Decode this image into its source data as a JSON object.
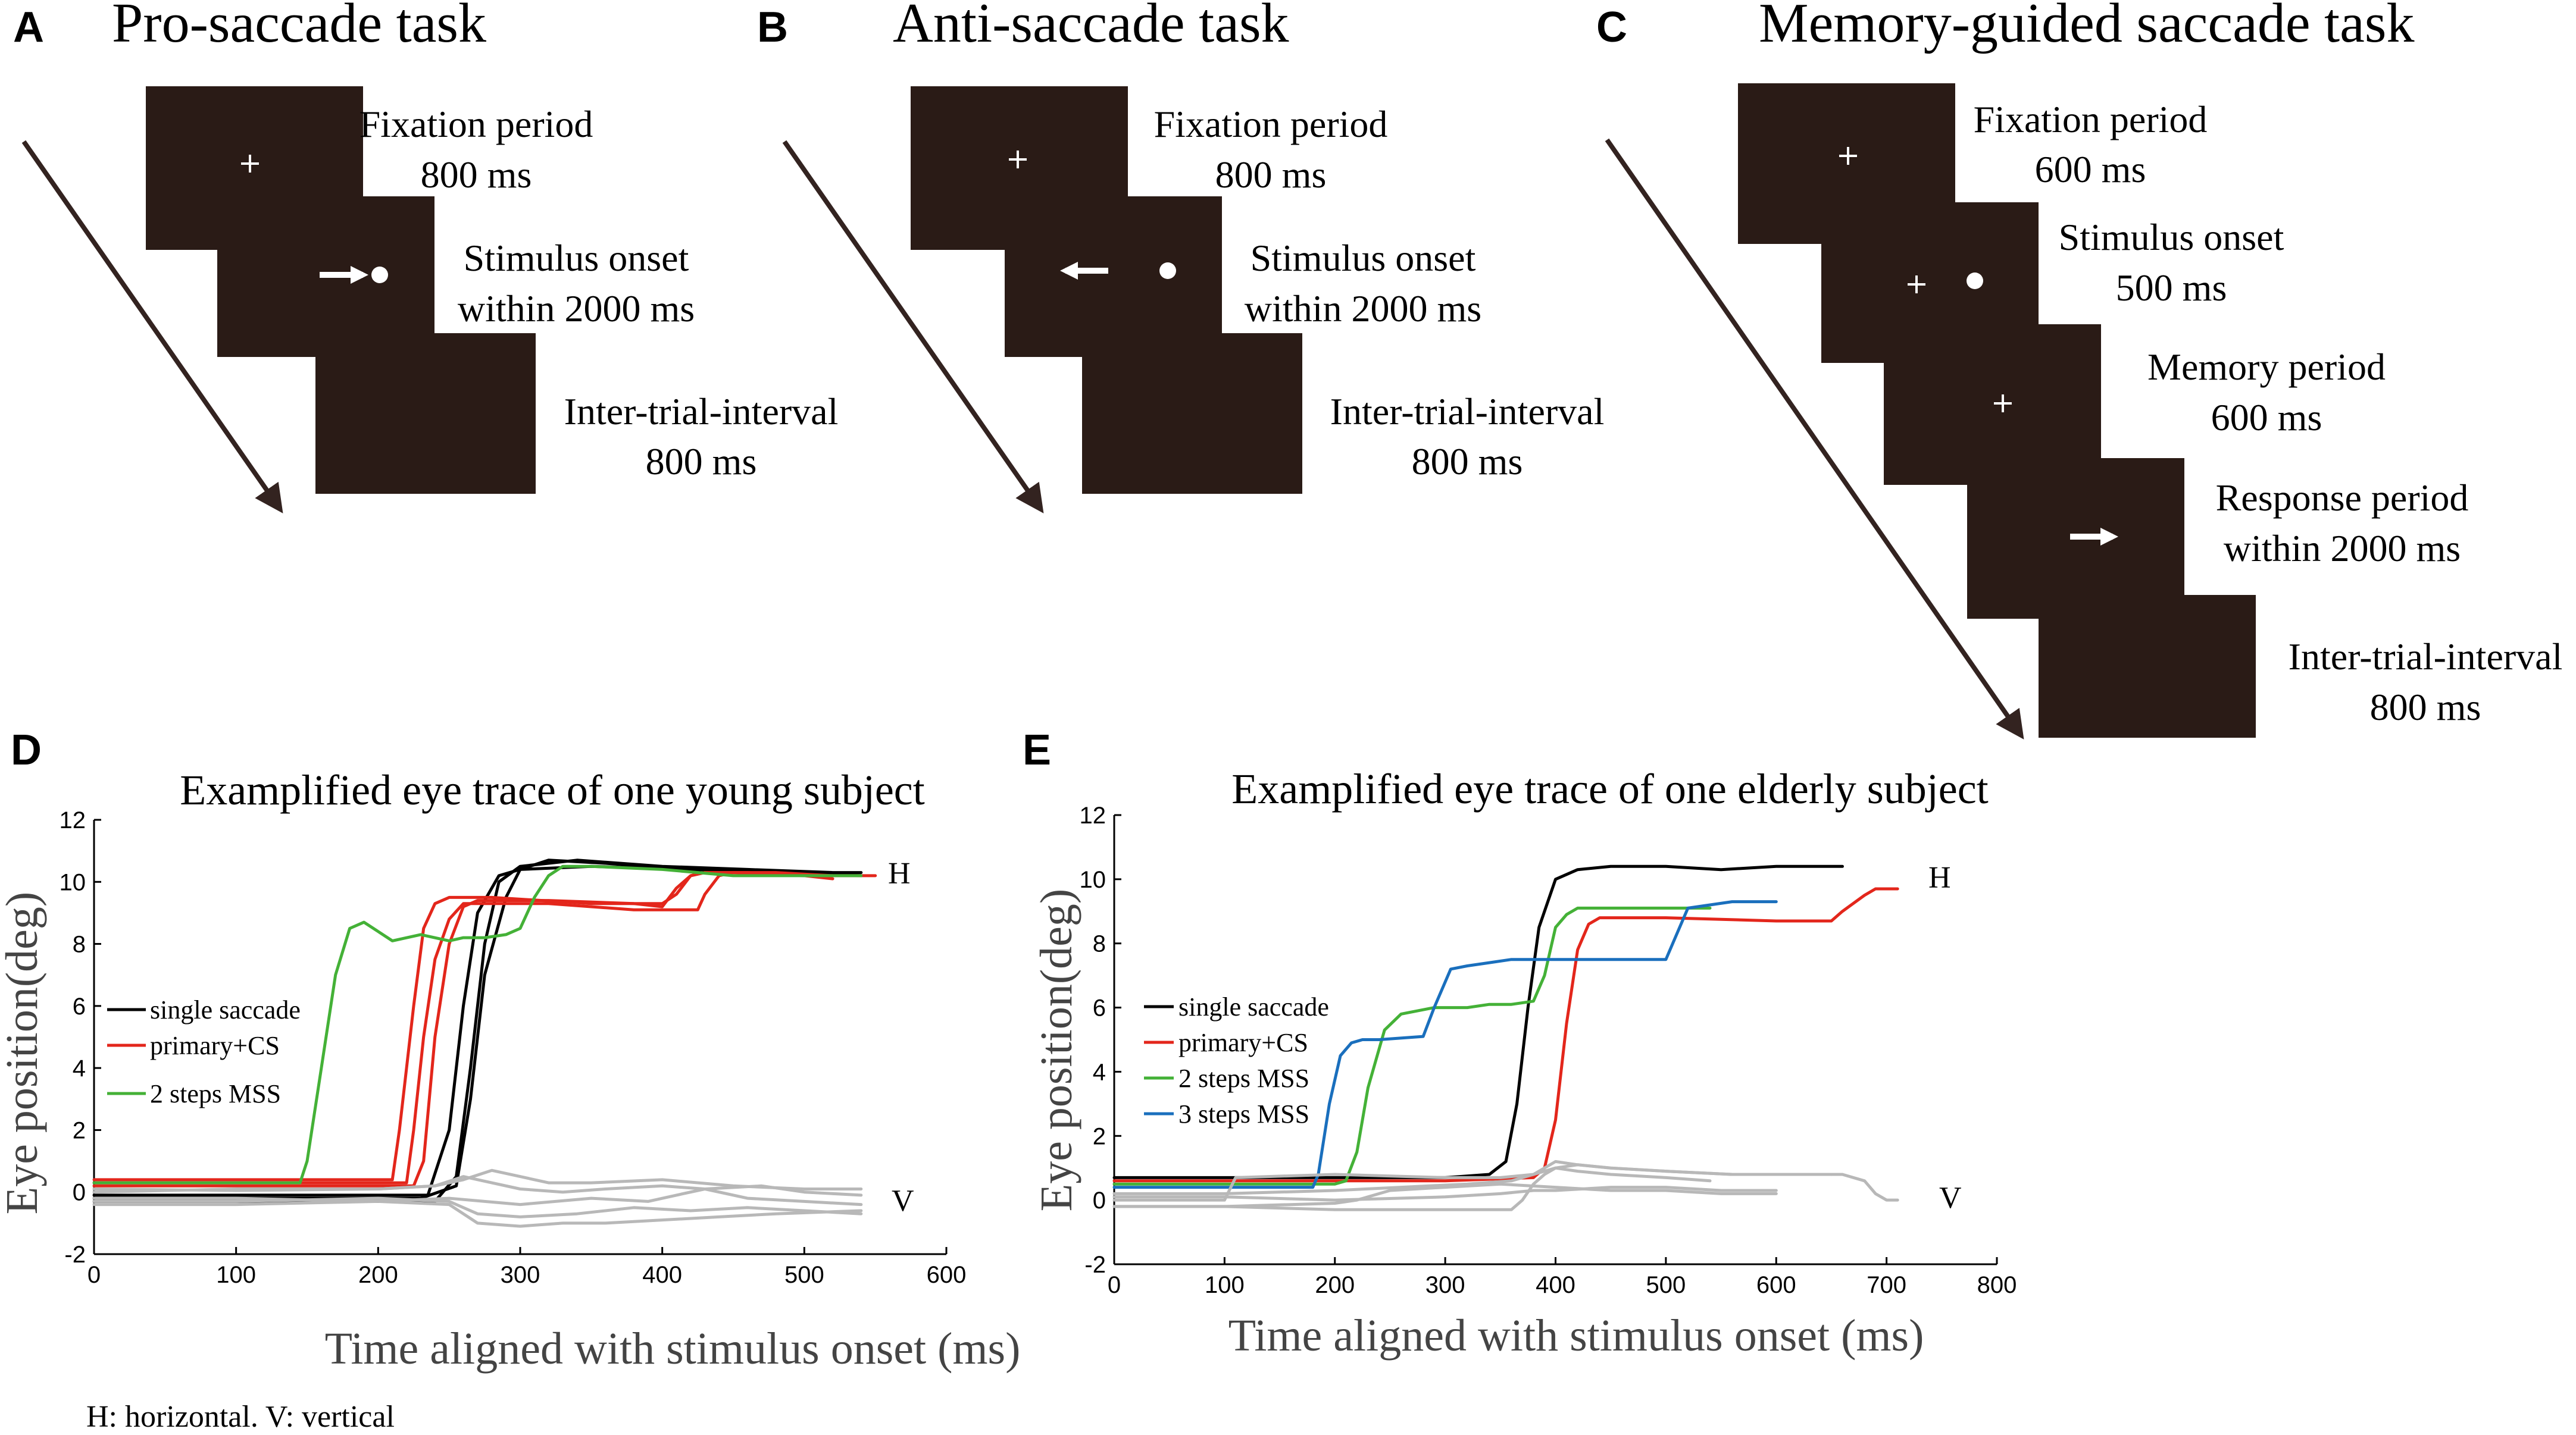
{
  "colors": {
    "screen": "#2a1b16",
    "arrow": "#332320",
    "single": "#000000",
    "primary_cs": "#e3261b",
    "two_steps": "#44b137",
    "three_steps": "#1a6fbd",
    "vertical": "#b8b8b8"
  },
  "panels": {
    "a": {
      "label": "A",
      "title": "Pro-saccade task",
      "steps": [
        {
          "line1": "Fixation period",
          "line2": "800 ms"
        },
        {
          "line1": "Stimulus onset",
          "line2": "within 2000 ms"
        },
        {
          "line1": "Inter-trial-interval",
          "line2": "800 ms"
        }
      ]
    },
    "b": {
      "label": "B",
      "title": "Anti-saccade task",
      "steps": [
        {
          "line1": "Fixation period",
          "line2": "800 ms"
        },
        {
          "line1": "Stimulus onset",
          "line2": "within 2000 ms"
        },
        {
          "line1": "Inter-trial-interval",
          "line2": "800 ms"
        }
      ]
    },
    "c": {
      "label": "C",
      "title": "Memory-guided saccade task",
      "steps": [
        {
          "line1": "Fixation period",
          "line2": "600 ms"
        },
        {
          "line1": "Stimulus onset",
          "line2": "500 ms"
        },
        {
          "line1": "Memory period",
          "line2": "600 ms"
        },
        {
          "line1": "Response period",
          "line2": "within 2000 ms"
        },
        {
          "line1": "Inter-trial-interval",
          "line2": "800 ms"
        }
      ]
    }
  },
  "chart_data": [
    {
      "id": "d",
      "label": "D",
      "type": "line",
      "title": "Examplified eye trace of one young subject",
      "xlabel": "Time aligned with stimulus onset (ms)",
      "ylabel": "Eye position(deg)",
      "xlim": [
        0,
        600
      ],
      "ylim": [
        -2,
        12
      ],
      "xticks": [
        "0",
        "100",
        "200",
        "300",
        "400",
        "500",
        "600"
      ],
      "yticks": [
        "-2",
        "0",
        "2",
        "4",
        "6",
        "8",
        "10",
        "12"
      ],
      "annotations": {
        "h": "H",
        "v": "V"
      },
      "legend": [
        "single saccade",
        "primary+CS",
        "2 steps MSS"
      ],
      "series": [
        {
          "name": "single saccade",
          "color": "#000000",
          "x": [
            0,
            230,
            255,
            265,
            275,
            290,
            300,
            320,
            360,
            420,
            480,
            540
          ],
          "y": [
            -0.2,
            -0.2,
            0.2,
            3,
            7,
            9.5,
            10.4,
            10.7,
            10.6,
            10.4,
            10.3,
            10.2
          ]
        },
        {
          "name": "single saccade",
          "color": "#000000",
          "x": [
            0,
            240,
            255,
            265,
            275,
            285,
            300,
            340,
            400,
            460,
            520,
            540
          ],
          "y": [
            -0.3,
            -0.3,
            0.5,
            4,
            8,
            10,
            10.5,
            10.7,
            10.5,
            10.4,
            10.3,
            10.3
          ]
        },
        {
          "name": "single saccade",
          "color": "#000000",
          "x": [
            0,
            235,
            250,
            260,
            270,
            285,
            300,
            350,
            420,
            480,
            540
          ],
          "y": [
            -0.1,
            -0.1,
            2,
            6,
            9,
            10.2,
            10.4,
            10.5,
            10.4,
            10.3,
            10.2
          ]
        },
        {
          "name": "primary+CS",
          "color": "#e3261b",
          "x": [
            0,
            210,
            215,
            225,
            232,
            240,
            250,
            280,
            350,
            400,
            410,
            420,
            430,
            460,
            500,
            520
          ],
          "y": [
            0.4,
            0.4,
            2,
            6,
            8.5,
            9.3,
            9.5,
            9.5,
            9.3,
            9.3,
            9.6,
            10.2,
            10.3,
            10.3,
            10.2,
            10.1
          ]
        },
        {
          "name": "primary+CS",
          "color": "#e3261b",
          "x": [
            0,
            220,
            225,
            232,
            240,
            250,
            260,
            320,
            380,
            425,
            430,
            440,
            450,
            500,
            550
          ],
          "y": [
            0.3,
            0.3,
            2,
            5,
            7.5,
            8.8,
            9.3,
            9.3,
            9.1,
            9.1,
            9.6,
            10.2,
            10.3,
            10.2,
            10.2
          ]
        },
        {
          "name": "primary+CS",
          "color": "#e3261b",
          "x": [
            0,
            225,
            232,
            240,
            250,
            260,
            270,
            320,
            380,
            400,
            410,
            420,
            430,
            480,
            520
          ],
          "y": [
            0.2,
            0.2,
            1,
            5,
            8,
            9.2,
            9.4,
            9.4,
            9.3,
            9.2,
            9.8,
            10.2,
            10.3,
            10.3,
            10.2
          ]
        },
        {
          "name": "2 steps MSS",
          "color": "#44b137",
          "x": [
            0,
            145,
            150,
            160,
            170,
            180,
            190,
            200,
            210,
            230,
            250,
            260,
            275,
            290,
            300,
            310,
            320,
            330,
            350,
            400,
            450,
            500,
            540
          ],
          "y": [
            0.3,
            0.3,
            1,
            4,
            7,
            8.5,
            8.7,
            8.4,
            8.1,
            8.3,
            8.1,
            8.2,
            8.2,
            8.3,
            8.5,
            9.5,
            10.2,
            10.5,
            10.5,
            10.4,
            10.2,
            10.2,
            10.2
          ]
        },
        {
          "name": "V",
          "color": "#b8b8b8",
          "x": [
            0,
            100,
            200,
            240,
            260,
            280,
            300,
            320,
            350,
            400,
            450,
            500,
            540
          ],
          "y": [
            0.1,
            0.05,
            0.1,
            0.2,
            0.4,
            0.7,
            0.5,
            0.3,
            0.3,
            0.4,
            0.2,
            0.1,
            0.1
          ]
        },
        {
          "name": "V",
          "color": "#b8b8b8",
          "x": [
            0,
            100,
            200,
            250,
            270,
            300,
            340,
            380,
            420,
            460,
            500,
            540
          ],
          "y": [
            -0.3,
            -0.3,
            -0.2,
            -0.3,
            -0.7,
            -0.8,
            -0.7,
            -0.5,
            -0.6,
            -0.5,
            -0.6,
            -0.7
          ]
        },
        {
          "name": "V",
          "color": "#b8b8b8",
          "x": [
            0,
            100,
            200,
            250,
            270,
            300,
            330,
            360,
            400,
            440,
            480,
            540
          ],
          "y": [
            -0.4,
            -0.4,
            -0.3,
            -0.4,
            -1.0,
            -1.1,
            -1.0,
            -1.0,
            -0.9,
            -0.8,
            -0.7,
            -0.6
          ]
        },
        {
          "name": "V",
          "color": "#b8b8b8",
          "x": [
            0,
            100,
            200,
            240,
            260,
            280,
            300,
            330,
            360,
            400,
            430,
            460,
            500,
            540
          ],
          "y": [
            0.0,
            0.1,
            0.1,
            0.2,
            0.5,
            0.3,
            0.1,
            0.0,
            0.1,
            0.2,
            0.1,
            -0.2,
            -0.3,
            -0.4
          ]
        },
        {
          "name": "V",
          "color": "#b8b8b8",
          "x": [
            0,
            100,
            200,
            250,
            300,
            350,
            390,
            410,
            430,
            470,
            500,
            540
          ],
          "y": [
            -0.2,
            -0.2,
            -0.3,
            -0.2,
            -0.4,
            -0.2,
            -0.3,
            -0.1,
            0.1,
            0.2,
            0.0,
            -0.1
          ]
        }
      ]
    },
    {
      "id": "e",
      "label": "E",
      "type": "line",
      "title": "Examplified eye trace of one elderly subject",
      "xlabel": "Time aligned with stimulus onset (ms)",
      "ylabel": "Eye position(deg)",
      "xlim": [
        0,
        800
      ],
      "ylim": [
        -2,
        12
      ],
      "xticks": [
        "0",
        "100",
        "200",
        "300",
        "400",
        "500",
        "600",
        "700",
        "800"
      ],
      "yticks": [
        "-2",
        "0",
        "2",
        "4",
        "6",
        "8",
        "10",
        "12"
      ],
      "annotations": {
        "h": "H",
        "v": "V"
      },
      "legend": [
        "single saccade",
        "primary+CS",
        "2 steps MSS",
        "3 steps MSS"
      ],
      "series": [
        {
          "name": "single saccade",
          "color": "#000000",
          "x": [
            0,
            300,
            340,
            355,
            365,
            375,
            385,
            400,
            420,
            450,
            500,
            550,
            600,
            660
          ],
          "y": [
            0.7,
            0.7,
            0.8,
            1.2,
            3,
            6,
            8.5,
            10,
            10.3,
            10.4,
            10.4,
            10.3,
            10.4,
            10.4
          ]
        },
        {
          "name": "primary+CS",
          "color": "#e3261b",
          "x": [
            0,
            300,
            380,
            390,
            400,
            410,
            420,
            430,
            440,
            500,
            600,
            650,
            660,
            680,
            690,
            700,
            710
          ],
          "y": [
            0.6,
            0.6,
            0.7,
            1,
            2.5,
            5.5,
            7.8,
            8.6,
            8.8,
            8.8,
            8.7,
            8.7,
            9,
            9.5,
            9.7,
            9.7,
            9.7
          ]
        },
        {
          "name": "2 steps MSS",
          "color": "#44b137",
          "x": [
            0,
            200,
            210,
            220,
            230,
            245,
            260,
            290,
            320,
            340,
            360,
            380,
            390,
            400,
            410,
            420,
            440,
            500,
            540
          ],
          "y": [
            0.5,
            0.5,
            0.6,
            1.5,
            3.5,
            5.3,
            5.8,
            6,
            6,
            6.1,
            6.1,
            6.2,
            7,
            8.5,
            8.9,
            9.1,
            9.1,
            9.1,
            9.1
          ]
        },
        {
          "name": "3 steps MSS",
          "color": "#1a6fbd",
          "x": [
            0,
            180,
            185,
            195,
            205,
            215,
            225,
            240,
            280,
            290,
            305,
            320,
            340,
            360,
            450,
            500,
            510,
            520,
            540,
            560,
            600
          ],
          "y": [
            0.4,
            0.4,
            0.8,
            3,
            4.5,
            4.9,
            5,
            5,
            5.1,
            6,
            7.2,
            7.3,
            7.4,
            7.5,
            7.5,
            7.5,
            8.3,
            9.1,
            9.2,
            9.3,
            9.3
          ]
        },
        {
          "name": "V",
          "color": "#b8b8b8",
          "x": [
            0,
            100,
            200,
            260,
            320,
            360,
            380,
            400,
            420,
            450,
            500,
            560,
            600,
            660,
            680,
            690,
            700,
            710
          ],
          "y": [
            0.2,
            0.2,
            0.3,
            0.4,
            0.5,
            0.6,
            0.8,
            1.0,
            1.1,
            1.0,
            0.9,
            0.8,
            0.8,
            0.8,
            0.6,
            0.2,
            0.0,
            0.0
          ]
        },
        {
          "name": "V",
          "color": "#b8b8b8",
          "x": [
            0,
            100,
            110,
            200,
            300,
            350,
            380,
            390,
            400,
            420,
            450,
            500,
            560,
            600,
            650
          ],
          "y": [
            0.0,
            0.0,
            0.7,
            0.8,
            0.7,
            0.7,
            0.8,
            1.0,
            1.2,
            1.1,
            1.0,
            0.9,
            0.8,
            0.8,
            0.8
          ]
        },
        {
          "name": "V",
          "color": "#b8b8b8",
          "x": [
            0,
            100,
            200,
            220,
            250,
            300,
            350,
            400,
            450,
            500,
            550,
            600
          ],
          "y": [
            -0.2,
            -0.2,
            -0.1,
            0.0,
            0.3,
            0.4,
            0.5,
            0.4,
            0.3,
            0.3,
            0.2,
            0.2
          ]
        },
        {
          "name": "V",
          "color": "#b8b8b8",
          "x": [
            0,
            100,
            200,
            300,
            360,
            370,
            380,
            390,
            400,
            420,
            450,
            500,
            540
          ],
          "y": [
            -0.2,
            -0.2,
            -0.3,
            -0.3,
            -0.3,
            0.0,
            0.5,
            0.8,
            1.0,
            0.9,
            0.8,
            0.7,
            0.6
          ]
        },
        {
          "name": "V",
          "color": "#b8b8b8",
          "x": [
            0,
            100,
            200,
            300,
            350,
            380,
            400,
            450,
            500,
            550,
            600
          ],
          "y": [
            0.1,
            0.1,
            0.0,
            0.1,
            0.2,
            0.3,
            0.3,
            0.4,
            0.4,
            0.3,
            0.3
          ]
        }
      ]
    }
  ],
  "footnote": "H: horizontal. V: vertical"
}
